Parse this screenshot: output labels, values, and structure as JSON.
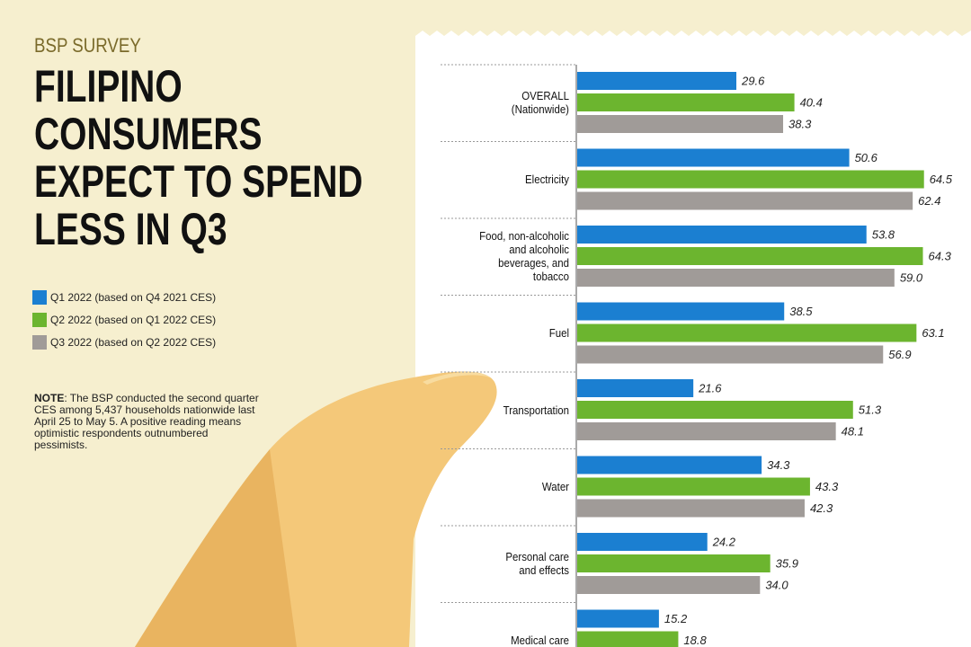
{
  "chart_data": {
    "type": "bar",
    "orientation": "horizontal",
    "kicker": "BSP SURVEY",
    "title": "FILIPINO CONSUMERS EXPECT TO SPEND LESS IN Q3",
    "note_label": "NOTE",
    "note": ": The BSP conducted the second quarter CES among 5,437 households nationwide last April 25 to May 5. A positive reading means optimistic respondents outnumbered pessimists.",
    "categories": [
      "OVERALL (Nationwide)",
      "Electricity",
      "Food, non-alcoholic and alcoholic beverages, and tobacco",
      "Fuel",
      "Transportation",
      "Water",
      "Personal care and effects",
      "Medical care"
    ],
    "series": [
      {
        "name": "Q1 2022 (based on Q4 2021 CES)",
        "color": "#1b7fd1",
        "values": [
          29.6,
          50.6,
          53.8,
          38.5,
          21.6,
          34.3,
          24.2,
          15.2
        ],
        "value_labels": [
          "29.6",
          "50.6",
          "53.8",
          "38.5",
          "21.6",
          "34.3",
          "24.2",
          "15.2"
        ]
      },
      {
        "name": "Q2 2022 (based on Q1 2022 CES)",
        "color": "#6cb52f",
        "values": [
          40.4,
          64.5,
          64.3,
          63.1,
          51.3,
          43.3,
          35.9,
          18.8
        ],
        "value_labels": [
          "40.4",
          "64.5",
          "64.3",
          "63.1",
          "51.3",
          "43.3",
          "35.9",
          "18.8"
        ]
      },
      {
        "name": "Q3 2022 (based on Q2 2022 CES)",
        "color": "#a09b98",
        "values": [
          38.3,
          62.4,
          59.0,
          56.9,
          48.1,
          42.3,
          34.0,
          null
        ],
        "value_labels": [
          "38.3",
          "62.4",
          "59.0",
          "56.9",
          "48.1",
          "42.3",
          "34.0",
          null
        ]
      }
    ]
  }
}
